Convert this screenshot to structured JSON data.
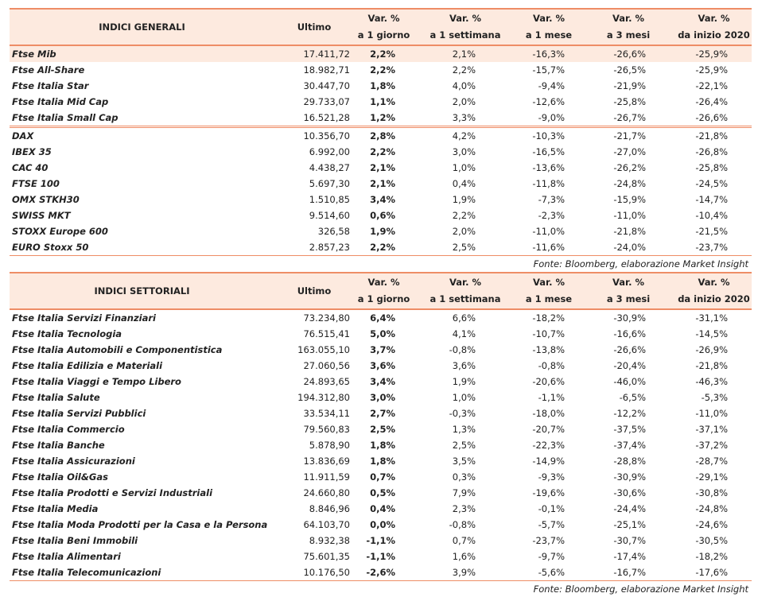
{
  "tables": [
    {
      "title": "INDICI GENERALI",
      "columns": [
        [
          "Ultimo"
        ],
        [
          "Var. %",
          "a 1 giorno"
        ],
        [
          "Var. %",
          "a 1 settimana"
        ],
        [
          "Var. %",
          "a 1 mese"
        ],
        [
          "Var. %",
          "a 3 mesi"
        ],
        [
          "Var. %",
          "da inizio 2020"
        ]
      ],
      "groups": [
        [
          [
            "Ftse Mib",
            "17.411,72",
            "2,2%",
            "2,1%",
            "-16,3%",
            "-26,6%",
            "-25,9%"
          ],
          [
            "Ftse All-Share",
            "18.982,71",
            "2,2%",
            "2,2%",
            "-15,7%",
            "-26,5%",
            "-25,9%"
          ],
          [
            "Ftse Italia Star",
            "30.447,70",
            "1,8%",
            "4,0%",
            "-9,4%",
            "-21,9%",
            "-22,1%"
          ],
          [
            "Ftse Italia Mid Cap",
            "29.733,07",
            "1,1%",
            "2,0%",
            "-12,6%",
            "-25,8%",
            "-26,4%"
          ],
          [
            "Ftse Italia Small Cap",
            "16.521,28",
            "1,2%",
            "3,3%",
            "-9,0%",
            "-26,7%",
            "-26,6%"
          ]
        ],
        [
          [
            "DAX",
            "10.356,70",
            "2,8%",
            "4,2%",
            "-10,3%",
            "-21,7%",
            "-21,8%"
          ],
          [
            "IBEX 35",
            "6.992,00",
            "2,2%",
            "3,0%",
            "-16,5%",
            "-27,0%",
            "-26,8%"
          ],
          [
            "CAC 40",
            "4.438,27",
            "2,1%",
            "1,0%",
            "-13,6%",
            "-26,2%",
            "-25,8%"
          ],
          [
            "FTSE 100",
            "5.697,30",
            "2,1%",
            "0,4%",
            "-11,8%",
            "-24,8%",
            "-24,5%"
          ],
          [
            "OMX STKH30",
            "1.510,85",
            "3,4%",
            "1,9%",
            "-7,3%",
            "-15,9%",
            "-14,7%"
          ],
          [
            "SWISS MKT",
            "9.514,60",
            "0,6%",
            "2,2%",
            "-2,3%",
            "-11,0%",
            "-10,4%"
          ],
          [
            "STOXX Europe 600",
            "326,58",
            "1,9%",
            "2,0%",
            "-11,0%",
            "-21,8%",
            "-21,5%"
          ],
          [
            "EURO Stoxx 50",
            "2.857,23",
            "2,2%",
            "2,5%",
            "-11,6%",
            "-24,0%",
            "-23,7%"
          ]
        ]
      ],
      "source": "Fonte: Bloomberg, elaborazione Market Insight"
    },
    {
      "title": "INDICI SETTORIALI",
      "columns": [
        [
          "Ultimo"
        ],
        [
          "Var. %",
          "a 1 giorno"
        ],
        [
          "Var. %",
          "a 1 settimana"
        ],
        [
          "Var. %",
          "a 1 mese"
        ],
        [
          "Var. %",
          "a 3 mesi"
        ],
        [
          "Var. %",
          "da inizio 2020"
        ]
      ],
      "groups": [
        [
          [
            "Ftse Italia Servizi Finanziari",
            "73.234,80",
            "6,4%",
            "6,6%",
            "-18,2%",
            "-30,9%",
            "-31,1%"
          ],
          [
            "Ftse Italia Tecnologia",
            "76.515,41",
            "5,0%",
            "4,1%",
            "-10,7%",
            "-16,6%",
            "-14,5%"
          ],
          [
            "Ftse Italia Automobili e Componentistica",
            "163.055,10",
            "3,7%",
            "-0,8%",
            "-13,8%",
            "-26,6%",
            "-26,9%"
          ],
          [
            "Ftse Italia Edilizia e Materiali",
            "27.060,56",
            "3,6%",
            "3,6%",
            "-0,8%",
            "-20,4%",
            "-21,8%"
          ],
          [
            "Ftse Italia Viaggi e Tempo Libero",
            "24.893,65",
            "3,4%",
            "1,9%",
            "-20,6%",
            "-46,0%",
            "-46,3%"
          ],
          [
            "Ftse Italia Salute",
            "194.312,80",
            "3,0%",
            "1,0%",
            "-1,1%",
            "-6,5%",
            "-5,3%"
          ],
          [
            "Ftse Italia Servizi Pubblici",
            "33.534,11",
            "2,7%",
            "-0,3%",
            "-18,0%",
            "-12,2%",
            "-11,0%"
          ],
          [
            "Ftse Italia Commercio",
            "79.560,83",
            "2,5%",
            "1,3%",
            "-20,7%",
            "-37,5%",
            "-37,1%"
          ],
          [
            "Ftse Italia Banche",
            "5.878,90",
            "1,8%",
            "2,5%",
            "-22,3%",
            "-37,4%",
            "-37,2%"
          ],
          [
            "Ftse Italia Assicurazioni",
            "13.836,69",
            "1,8%",
            "3,5%",
            "-14,9%",
            "-28,8%",
            "-28,7%"
          ],
          [
            "Ftse Italia Oil&Gas",
            "11.911,59",
            "0,7%",
            "0,3%",
            "-9,3%",
            "-30,9%",
            "-29,1%"
          ],
          [
            "Ftse Italia Prodotti e Servizi Industriali",
            "24.660,80",
            "0,5%",
            "7,9%",
            "-19,6%",
            "-30,6%",
            "-30,8%"
          ],
          [
            "Ftse Italia Media",
            "8.846,96",
            "0,4%",
            "2,3%",
            "-0,1%",
            "-24,4%",
            "-24,8%"
          ],
          [
            "Ftse Italia Moda Prodotti per la Casa e la Persona",
            "64.103,70",
            "0,0%",
            "-0,8%",
            "-5,7%",
            "-25,1%",
            "-24,6%"
          ],
          [
            "Ftse Italia Beni Immobili",
            "8.932,38",
            "-1,1%",
            "0,7%",
            "-23,7%",
            "-30,7%",
            "-30,5%"
          ],
          [
            "Ftse Italia Alimentari",
            "75.601,35",
            "-1,1%",
            "1,6%",
            "-9,7%",
            "-17,4%",
            "-18,2%"
          ],
          [
            "Ftse Italia Telecomunicazioni",
            "10.176,50",
            "-2,6%",
            "3,9%",
            "-5,6%",
            "-16,7%",
            "-17,6%"
          ]
        ]
      ],
      "source": "Fonte: Bloomberg, elaborazione Market Insight"
    }
  ]
}
